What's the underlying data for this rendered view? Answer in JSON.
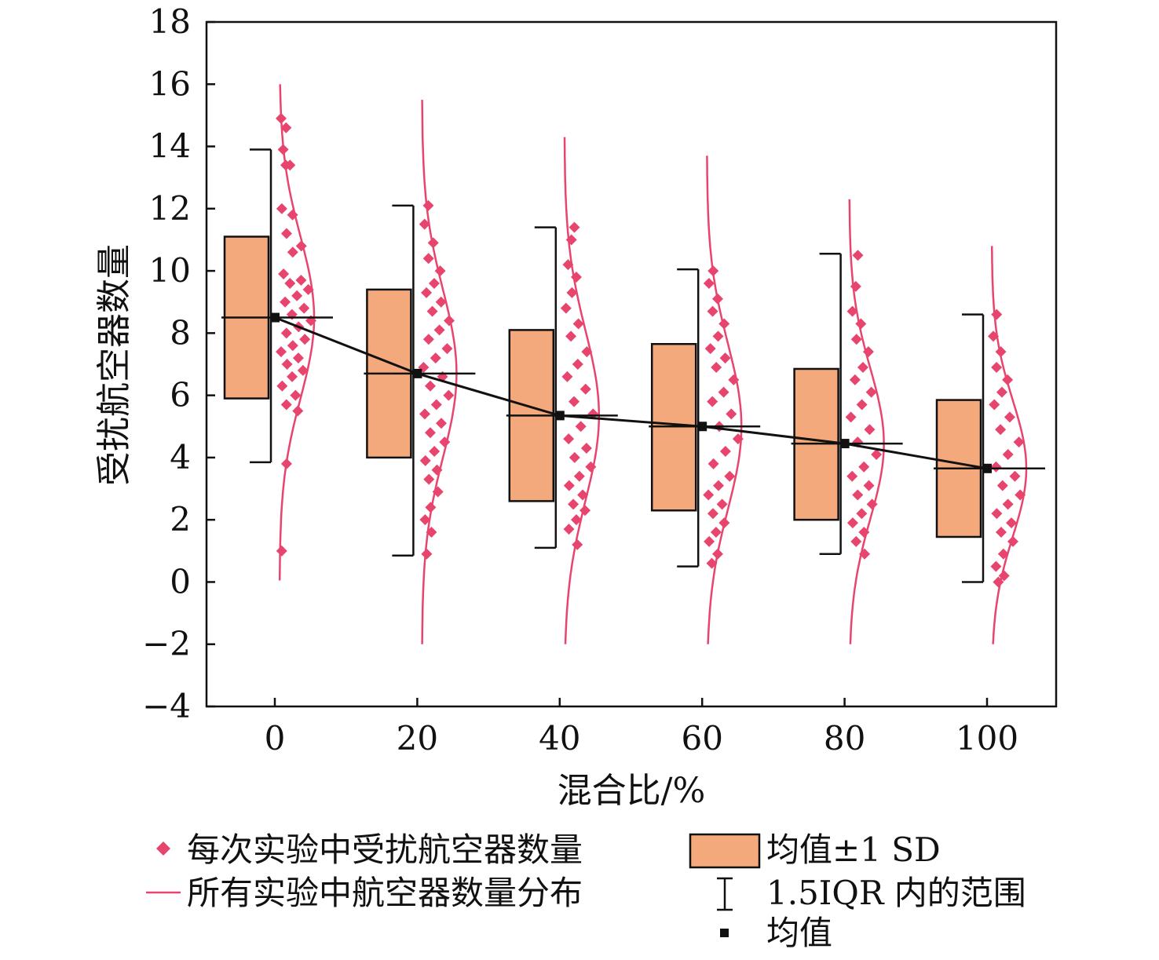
{
  "chart_data": {
    "type": "box",
    "xlabel": "混合比/%",
    "ylabel": "受扰航空器数量",
    "ylim": [
      -4,
      18
    ],
    "yticks": [
      -4,
      -2,
      0,
      2,
      4,
      6,
      8,
      10,
      12,
      14,
      16,
      18
    ],
    "categories": [
      "0",
      "20",
      "40",
      "60",
      "80",
      "100"
    ],
    "x_values": [
      0,
      20,
      40,
      60,
      80,
      100
    ],
    "mean": [
      8.5,
      6.7,
      5.35,
      5.0,
      4.45,
      3.65
    ],
    "sd_box": [
      [
        5.9,
        11.1
      ],
      [
        4.0,
        9.4
      ],
      [
        2.6,
        8.1
      ],
      [
        2.3,
        7.65
      ],
      [
        2.0,
        6.85
      ],
      [
        1.45,
        5.85
      ]
    ],
    "iqr_range": [
      [
        3.85,
        13.9
      ],
      [
        0.85,
        12.1
      ],
      [
        1.1,
        11.4
      ],
      [
        0.5,
        10.05
      ],
      [
        0.9,
        10.55
      ],
      [
        0.0,
        8.6
      ]
    ],
    "distribution_curve_range": [
      [
        0.05,
        16.0
      ],
      [
        -2.0,
        15.5
      ],
      [
        -2.0,
        14.3
      ],
      [
        -2.0,
        13.7
      ],
      [
        -2.0,
        12.3
      ],
      [
        -2.0,
        10.8
      ]
    ],
    "points": [
      [
        14.9,
        14.6,
        13.9,
        13.4,
        13.4,
        12.0,
        11.8,
        11.2,
        10.8,
        10.6,
        9.9,
        9.7,
        9.6,
        9.4,
        9.2,
        9.0,
        8.8,
        8.6,
        8.4,
        8.2,
        8.0,
        7.8,
        7.6,
        7.4,
        7.2,
        7.0,
        6.8,
        6.6,
        6.3,
        6.0,
        5.7,
        5.5,
        3.8,
        1.0
      ],
      [
        12.1,
        11.5,
        10.9,
        10.4,
        10.0,
        9.6,
        9.3,
        9.0,
        8.7,
        8.4,
        8.1,
        7.8,
        7.5,
        7.2,
        6.9,
        6.6,
        6.3,
        6.0,
        5.7,
        5.4,
        5.1,
        4.8,
        4.5,
        4.2,
        3.9,
        3.6,
        3.3,
        2.9,
        2.4,
        2.0,
        1.6,
        0.9
      ],
      [
        11.4,
        11.0,
        10.2,
        9.8,
        9.3,
        8.8,
        8.3,
        7.9,
        7.4,
        7.0,
        6.6,
        6.2,
        5.8,
        5.4,
        5.0,
        4.6,
        4.3,
        4.0,
        3.7,
        3.4,
        3.1,
        2.8,
        2.5,
        2.3,
        2.0,
        1.7,
        1.2
      ],
      [
        10.0,
        9.6,
        9.1,
        8.7,
        8.3,
        7.9,
        7.5,
        7.2,
        6.9,
        6.5,
        6.1,
        5.8,
        5.4,
        5.0,
        4.6,
        4.2,
        3.8,
        3.4,
        3.1,
        2.8,
        2.5,
        2.2,
        1.9,
        1.6,
        1.3,
        0.9,
        0.6
      ],
      [
        10.5,
        9.5,
        8.7,
        8.3,
        7.8,
        7.4,
        6.9,
        6.5,
        6.1,
        5.7,
        5.3,
        4.9,
        4.5,
        4.1,
        3.7,
        3.4,
        3.1,
        2.8,
        2.5,
        2.2,
        1.9,
        1.6,
        1.3,
        0.9
      ],
      [
        8.6,
        7.9,
        7.4,
        6.9,
        6.5,
        6.1,
        5.7,
        5.3,
        4.9,
        4.5,
        4.1,
        3.7,
        3.4,
        3.1,
        2.8,
        2.5,
        2.2,
        1.9,
        1.6,
        1.3,
        0.9,
        0.5,
        0.2,
        0.0
      ]
    ]
  },
  "legend": {
    "points": "每次实验中受扰航空器数量",
    "curve": "所有实验中航空器数量分布",
    "box": "均值±1 SD",
    "whisker": "1.5IQR 内的范围",
    "mean": "均值"
  },
  "colors": {
    "box_fill": "#f4a97c",
    "points": "#e8456e",
    "curve": "#e8456e",
    "line": "#111111"
  }
}
